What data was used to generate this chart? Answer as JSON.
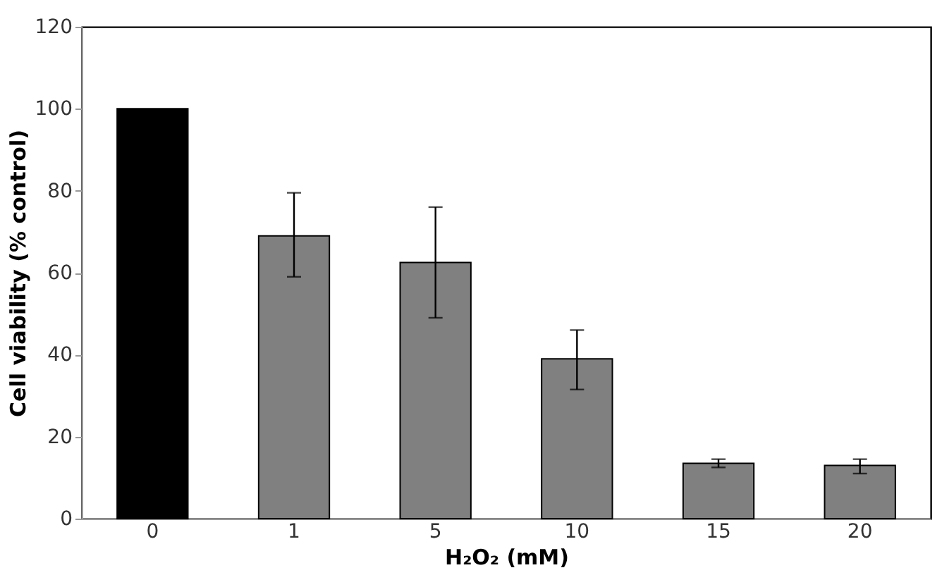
{
  "chart_data": {
    "type": "bar",
    "categories": [
      "0",
      "1",
      "5",
      "10",
      "15",
      "20"
    ],
    "values": [
      100,
      69,
      62.5,
      39,
      13.5,
      13
    ],
    "colors": [
      "#000000",
      "#808080",
      "#808080",
      "#808080",
      "#808080",
      "#808080"
    ],
    "errors": [
      null,
      [
        59,
        79.5
      ],
      [
        49,
        76
      ],
      [
        31.5,
        46
      ],
      [
        12.5,
        14.5
      ],
      [
        11,
        14.5
      ]
    ],
    "xlabel": "H₂O₂ (mM)",
    "ylabel": "Cell viability (% control)",
    "ylim": [
      0,
      120
    ],
    "yticks": [
      0,
      20,
      40,
      60,
      80,
      100,
      120
    ],
    "grid": false
  }
}
